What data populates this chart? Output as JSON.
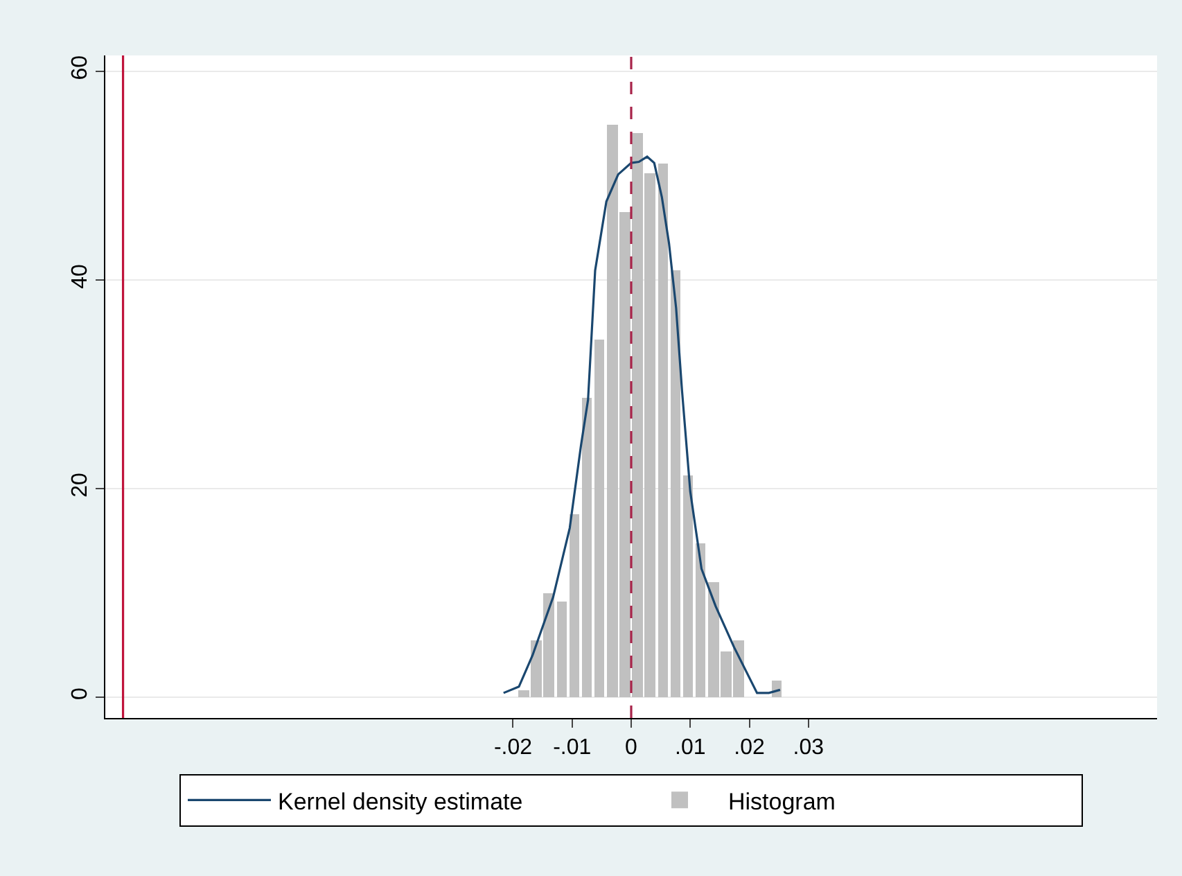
{
  "chart_data": {
    "type": "histogram",
    "xlim": [
      -0.089,
      0.089
    ],
    "ylim": [
      -2,
      61.5
    ],
    "xticks": [
      {
        "value": -0.02,
        "label": "-.02"
      },
      {
        "value": -0.01,
        "label": "-.01"
      },
      0,
      {
        "value": 0.01,
        "label": ".01"
      },
      {
        "value": 0.02,
        "label": ".02"
      },
      {
        "value": 0.03,
        "label": ".03"
      }
    ],
    "yticks": [
      0,
      20,
      40,
      60
    ],
    "grid": "y",
    "legend": "bottom",
    "series": [
      {
        "name": "Kernel density estimate",
        "type": "line",
        "color": "#1a476f",
        "x": [
          -0.0216,
          -0.019,
          -0.0167,
          -0.0132,
          -0.0104,
          -0.0085,
          -0.0073,
          -0.0061,
          -0.0042,
          -0.0022,
          0,
          0.0013,
          0.0027,
          0.0039,
          0.0052,
          0.0064,
          0.0076,
          0.0086,
          0.01,
          0.0119,
          0.0143,
          0.0174,
          0.0213,
          0.0233,
          0.0252
        ],
        "values": [
          0.4,
          1.0,
          4.0,
          9.6,
          16.2,
          24.1,
          28.5,
          40.9,
          47.5,
          50.1,
          51.2,
          51.3,
          51.8,
          51.2,
          47.9,
          43.5,
          37.3,
          29.4,
          19.7,
          12.3,
          8.7,
          4.8,
          0.4,
          0.4,
          0.7
        ]
      },
      {
        "name": "Histogram",
        "color": "#c0c0c0",
        "bins": [
          -0.0193,
          -0.0171,
          -0.015,
          -0.0128,
          -0.0107,
          -0.0086,
          -0.0064,
          -0.0043,
          -0.0021,
          0,
          0.0021,
          0.0043,
          0.0064,
          0.0086,
          0.0107,
          0.0128,
          0.015,
          0.0171,
          0.0193,
          0.0236,
          0.0257
        ],
        "values": [
          0.7,
          5.4,
          10.0,
          9.2,
          17.5,
          28.7,
          34.3,
          54.9,
          46.5,
          54.0,
          50.2,
          51.1,
          40.9,
          21.3,
          14.7,
          11.0,
          4.4,
          5.4,
          0,
          1.6
        ]
      }
    ],
    "ref_lines": [
      {
        "axis": "x",
        "value": -0.086,
        "color": "#c0143c",
        "line_style": "solid"
      },
      {
        "axis": "x",
        "value": 0,
        "color": "#a8244a",
        "line_style": "dashed"
      }
    ]
  }
}
